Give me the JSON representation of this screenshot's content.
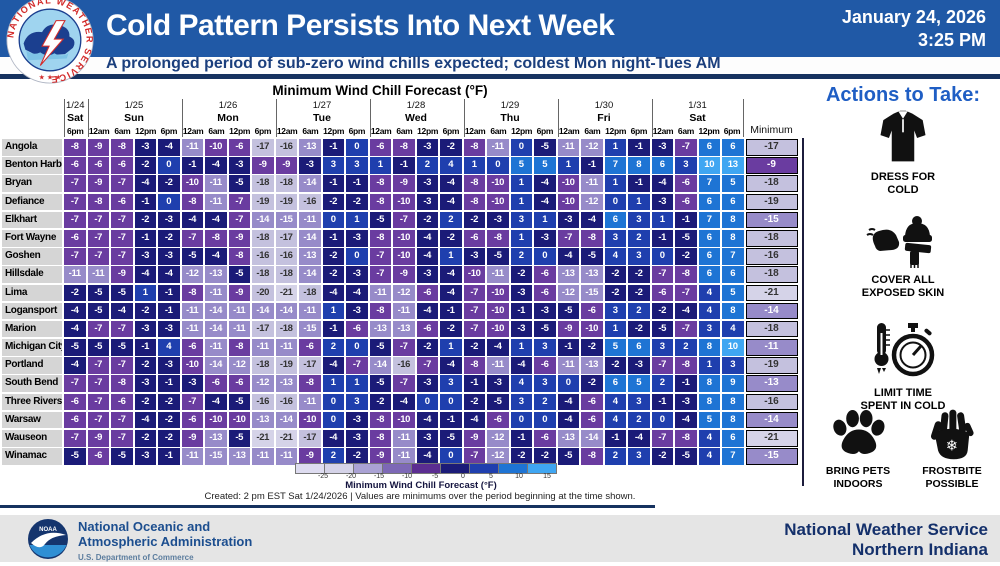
{
  "header": {
    "title": "Cold Pattern Persists Into Next Week",
    "date": "January 24, 2026",
    "time": "3:25 PM",
    "subtitle": "A prolonged period of sub-zero wind chills expected; coldest Mon night-Tues AM",
    "header_bg": "#2059a6"
  },
  "chart_data": {
    "type": "heatmap",
    "title": "Minimum Wind Chill Forecast (°F)",
    "min_column_header": "Minimum",
    "day_groups": [
      {
        "date": "1/24",
        "day": "Sat",
        "times": [
          "6pm"
        ]
      },
      {
        "date": "1/25",
        "day": "Sun",
        "times": [
          "12am",
          "6am",
          "12pm",
          "6pm"
        ]
      },
      {
        "date": "1/26",
        "day": "Mon",
        "times": [
          "12am",
          "6am",
          "12pm",
          "6pm"
        ]
      },
      {
        "date": "1/27",
        "day": "Tue",
        "times": [
          "12am",
          "6am",
          "12pm",
          "6pm"
        ]
      },
      {
        "date": "1/28",
        "day": "Wed",
        "times": [
          "12am",
          "6am",
          "12pm",
          "6pm"
        ]
      },
      {
        "date": "1/29",
        "day": "Thu",
        "times": [
          "12am",
          "6am",
          "12pm",
          "6pm"
        ]
      },
      {
        "date": "1/30",
        "day": "Fri",
        "times": [
          "12am",
          "6am",
          "12pm",
          "6pm"
        ]
      },
      {
        "date": "1/31",
        "day": "Sat",
        "times": [
          "12am",
          "6am",
          "12pm",
          "6pm"
        ]
      }
    ],
    "rows": [
      {
        "city": "Angola",
        "values": [
          -8,
          -9,
          -8,
          -3,
          -4,
          -11,
          -10,
          -6,
          -17,
          -16,
          -13,
          -1,
          0,
          -6,
          -8,
          -3,
          -2,
          -8,
          -11,
          0,
          -5,
          -11,
          -12,
          1,
          -1,
          -3,
          -7,
          6,
          6
        ],
        "min": -17
      },
      {
        "city": "Benton Harbor",
        "values": [
          -6,
          -6,
          -6,
          -2,
          0,
          -1,
          -4,
          -3,
          -9,
          -9,
          -3,
          3,
          3,
          1,
          -1,
          2,
          4,
          1,
          0,
          5,
          5,
          1,
          -1,
          7,
          8,
          6,
          3,
          10,
          13
        ],
        "min": -9
      },
      {
        "city": "Bryan",
        "values": [
          -7,
          -9,
          -7,
          -4,
          -2,
          -10,
          -11,
          -5,
          -18,
          -18,
          -14,
          -1,
          -1,
          -8,
          -9,
          -3,
          -4,
          -8,
          -10,
          1,
          -4,
          -10,
          -11,
          1,
          -1,
          -4,
          -6,
          7,
          5
        ],
        "min": -18
      },
      {
        "city": "Defiance",
        "values": [
          -7,
          -8,
          -6,
          -1,
          0,
          -8,
          -11,
          -7,
          -19,
          -19,
          -16,
          -2,
          -2,
          -8,
          -10,
          -3,
          -4,
          -8,
          -10,
          1,
          -4,
          -10,
          -12,
          0,
          1,
          -3,
          -6,
          6,
          6
        ],
        "min": -19
      },
      {
        "city": "Elkhart",
        "values": [
          -7,
          -7,
          -7,
          -2,
          -3,
          -4,
          -4,
          -7,
          -14,
          -15,
          -11,
          0,
          1,
          -5,
          -7,
          -2,
          2,
          -2,
          -3,
          3,
          1,
          -3,
          -4,
          6,
          3,
          1,
          -1,
          7,
          8
        ],
        "min": -15
      },
      {
        "city": "Fort Wayne",
        "values": [
          -6,
          -7,
          -7,
          -1,
          -2,
          -7,
          -8,
          -9,
          -18,
          -17,
          -14,
          -1,
          -3,
          -8,
          -10,
          -4,
          -2,
          -6,
          -8,
          1,
          -3,
          -7,
          -8,
          3,
          2,
          -1,
          -5,
          6,
          8
        ],
        "min": -18
      },
      {
        "city": "Goshen",
        "values": [
          -7,
          -7,
          -7,
          -3,
          -3,
          -5,
          -4,
          -8,
          -16,
          -16,
          -13,
          -2,
          0,
          -7,
          -10,
          -4,
          1,
          -3,
          -5,
          2,
          0,
          -4,
          -5,
          4,
          3,
          0,
          -2,
          6,
          7
        ],
        "min": -16
      },
      {
        "city": "Hillsdale",
        "values": [
          -11,
          -11,
          -9,
          -4,
          -4,
          -12,
          -13,
          -5,
          -18,
          -18,
          -14,
          -2,
          -3,
          -7,
          -9,
          -3,
          -4,
          -10,
          -11,
          -2,
          -6,
          -13,
          -13,
          -2,
          -2,
          -7,
          -8,
          6,
          6
        ],
        "min": -18
      },
      {
        "city": "Lima",
        "values": [
          -2,
          -5,
          -5,
          1,
          -1,
          -8,
          -11,
          -9,
          -20,
          -21,
          -18,
          -4,
          -4,
          -11,
          -12,
          -6,
          -4,
          -7,
          -10,
          -3,
          -6,
          -12,
          -15,
          -2,
          -2,
          -6,
          -7,
          4,
          5
        ],
        "min": -21
      },
      {
        "city": "Logansport",
        "values": [
          -4,
          -5,
          -4,
          -2,
          -1,
          -11,
          -14,
          -11,
          -14,
          -14,
          -11,
          1,
          -3,
          -8,
          -11,
          -4,
          -1,
          -7,
          -10,
          -1,
          -3,
          -5,
          -6,
          3,
          2,
          -2,
          -4,
          4,
          8
        ],
        "min": -14
      },
      {
        "city": "Marion",
        "values": [
          -4,
          -7,
          -7,
          -3,
          -3,
          -11,
          -14,
          -11,
          -17,
          -18,
          -15,
          -1,
          -6,
          -13,
          -13,
          -6,
          -2,
          -7,
          -10,
          -3,
          -5,
          -9,
          -10,
          1,
          -2,
          -5,
          -7,
          3,
          4
        ],
        "min": -18
      },
      {
        "city": "Michigan City",
        "values": [
          -5,
          -5,
          -5,
          -1,
          4,
          -6,
          -11,
          -8,
          -11,
          -11,
          -6,
          2,
          0,
          -5,
          -7,
          -2,
          1,
          -2,
          -4,
          1,
          3,
          -1,
          -2,
          5,
          6,
          3,
          2,
          8,
          10
        ],
        "min": -11
      },
      {
        "city": "Portland",
        "values": [
          -4,
          -7,
          -7,
          -2,
          -3,
          -10,
          -14,
          -12,
          -18,
          -19,
          -17,
          -4,
          -7,
          -14,
          -16,
          -7,
          -4,
          -8,
          -11,
          -4,
          -6,
          -11,
          -13,
          -2,
          -3,
          -7,
          -8,
          1,
          3
        ],
        "min": -19
      },
      {
        "city": "South Bend",
        "values": [
          -7,
          -7,
          -8,
          -3,
          -1,
          -3,
          -6,
          -6,
          -12,
          -13,
          -8,
          1,
          1,
          -5,
          -7,
          -3,
          3,
          -1,
          -3,
          4,
          3,
          0,
          -2,
          6,
          5,
          2,
          -1,
          8,
          9
        ],
        "min": -13
      },
      {
        "city": "Three Rivers",
        "values": [
          -6,
          -7,
          -6,
          -2,
          -2,
          -7,
          -4,
          -5,
          -16,
          -16,
          -11,
          0,
          3,
          -2,
          -4,
          0,
          0,
          -2,
          -5,
          3,
          2,
          -4,
          -6,
          4,
          3,
          -1,
          -3,
          8,
          8
        ],
        "min": -16
      },
      {
        "city": "Warsaw",
        "values": [
          -6,
          -7,
          -7,
          -4,
          -2,
          -6,
          -10,
          -10,
          -13,
          -14,
          -10,
          0,
          -3,
          -8,
          -10,
          -4,
          -1,
          -4,
          -6,
          0,
          0,
          -4,
          -6,
          4,
          2,
          0,
          -4,
          5,
          8
        ],
        "min": -14
      },
      {
        "city": "Wauseon",
        "values": [
          -7,
          -9,
          -7,
          -2,
          -2,
          -9,
          -13,
          -5,
          -21,
          -21,
          -17,
          -4,
          -3,
          -8,
          -11,
          -3,
          -5,
          -9,
          -12,
          -1,
          -6,
          -13,
          -14,
          -1,
          -4,
          -7,
          -8,
          4,
          6
        ],
        "min": -21
      },
      {
        "city": "Winamac",
        "values": [
          -5,
          -6,
          -5,
          -3,
          -1,
          -11,
          -15,
          -13,
          -11,
          -11,
          -9,
          2,
          -2,
          -9,
          -11,
          -4,
          0,
          -7,
          -12,
          -2,
          -2,
          -5,
          -8,
          2,
          3,
          -2,
          -5,
          4,
          7
        ],
        "min": -15
      }
    ],
    "color_bins": [
      {
        "gte": 10,
        "bg": "#3fa6f2",
        "fg": "#ffffff"
      },
      {
        "gte": 5,
        "bg": "#1e74d4",
        "fg": "#ffffff"
      },
      {
        "gte": 0,
        "bg": "#1f3fae",
        "fg": "#ffffff"
      },
      {
        "gte": -5,
        "bg": "#1b1b78",
        "fg": "#ffffff"
      },
      {
        "gte": -10,
        "bg": "#6a3ca0",
        "fg": "#ffffff"
      },
      {
        "gte": -15,
        "bg": "#978bc9",
        "fg": "#ffffff"
      },
      {
        "gte": -20,
        "bg": "#c4c1de",
        "fg": "#333333"
      },
      {
        "gte": -99,
        "bg": "#d5d3e8",
        "fg": "#333333"
      }
    ],
    "legend": {
      "segments": [
        "#dedcf0",
        "#d5d3e8",
        "#aaa2d4",
        "#7d68b6",
        "#5b2d91",
        "#1b1b78",
        "#1f3fae",
        "#1e74d4",
        "#3fa6f2"
      ],
      "ticks": [
        "-25",
        "-20",
        "-15",
        "-10",
        "-5",
        "0",
        "5",
        "10",
        "15"
      ],
      "title": "Minimum Wind Chill Forecast (°F)",
      "caption": "Created: 2 pm EST Sat 1/24/2026  |  Values are minimums over the period beginning at the time shown."
    }
  },
  "actions": {
    "title": "Actions to Take:",
    "items": [
      {
        "icon": "jacket-icon",
        "label": "DRESS FOR\nCOLD"
      },
      {
        "icon": "winter-gear-icon",
        "label": "COVER ALL\nEXPOSED SKIN"
      },
      {
        "icon": "limit-time-icon",
        "label": "LIMIT TIME\nSPENT IN COLD"
      },
      {
        "icon": "paw-icon",
        "label": "BRING PETS\nINDOORS"
      },
      {
        "icon": "frostbite-hand-icon",
        "label": "FROSTBITE\nPOSSIBLE"
      }
    ]
  },
  "footer": {
    "noaa_line1": "National Oceanic and",
    "noaa_line2": "Atmospheric Administration",
    "noaa_sub": "U.S. Department of Commerce",
    "nws_line1": "National Weather Service",
    "nws_line2": "Northern Indiana"
  }
}
